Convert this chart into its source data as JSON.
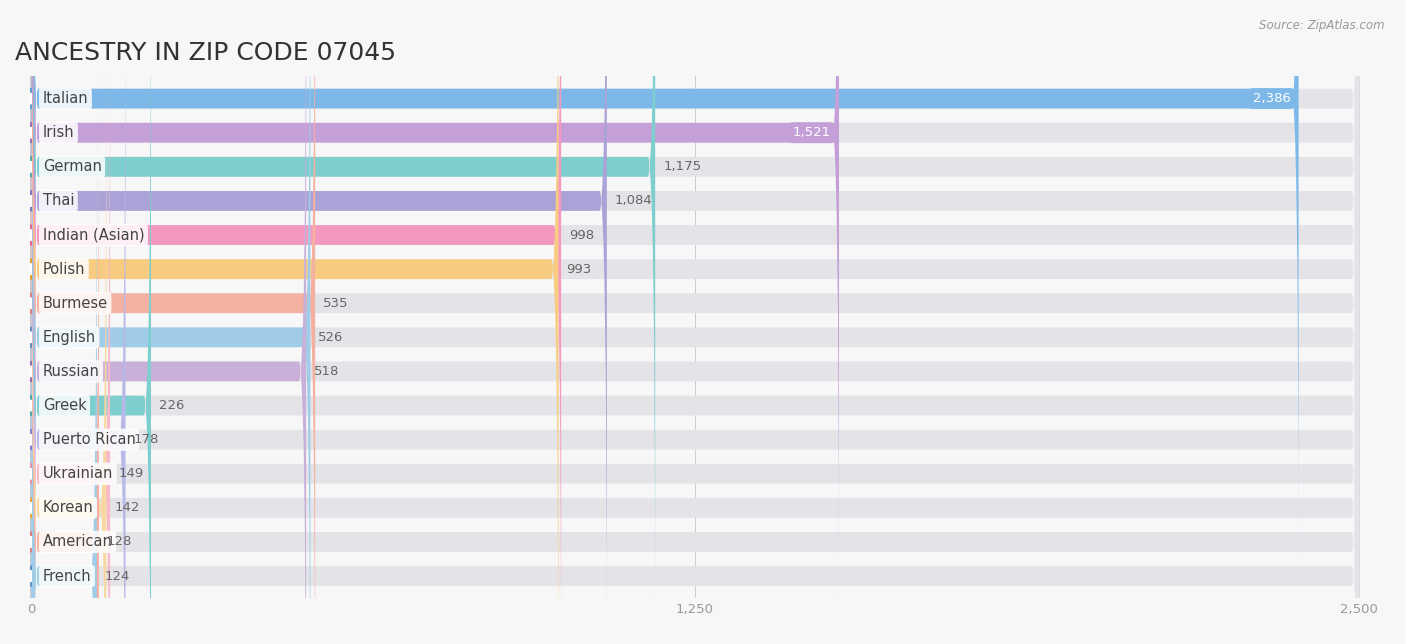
{
  "title": "ANCESTRY IN ZIP CODE 07045",
  "source": "Source: ZipAtlas.com",
  "categories": [
    "Italian",
    "Irish",
    "German",
    "Thai",
    "Indian (Asian)",
    "Polish",
    "Burmese",
    "English",
    "Russian",
    "Greek",
    "Puerto Rican",
    "Ukrainian",
    "Korean",
    "American",
    "French"
  ],
  "values": [
    2386,
    1521,
    1175,
    1084,
    998,
    993,
    535,
    526,
    518,
    226,
    178,
    149,
    142,
    128,
    124
  ],
  "bar_colors": [
    "#7db8e8",
    "#c49fd8",
    "#7ecece",
    "#aba3d8",
    "#f598c0",
    "#f8cc80",
    "#f4b0a0",
    "#a0cce8",
    "#c8b0d8",
    "#7ecece",
    "#b8b8e8",
    "#f8b8cc",
    "#f8d8a0",
    "#f4b0a0",
    "#a0cce8"
  ],
  "dot_colors": [
    "#5a9fcc",
    "#a070bb",
    "#50aaaa",
    "#7878bb",
    "#e86098",
    "#e8a020",
    "#e08080",
    "#6090bb",
    "#9070aa",
    "#50aaaa",
    "#8080cc",
    "#e890aa",
    "#e8a840",
    "#e08080",
    "#6090bb"
  ],
  "value_pill_colors": [
    "#7db8e8",
    "#c49fd8",
    "#7ecece",
    "#aba3d8",
    "#f598c0",
    "#f8cc80",
    "#f4b0a0",
    "#a0cce8",
    "#c8b0d8",
    "#7ecece",
    "#b8b8e8",
    "#f8b8cc",
    "#f8d8a0",
    "#f4b0a0",
    "#a0cce8"
  ],
  "xlim": [
    0,
    2500
  ],
  "xticks": [
    0,
    1250,
    2500
  ],
  "background_color": "#f7f7f7",
  "bar_background_color": "#e4e4e8",
  "title_fontsize": 18,
  "label_fontsize": 10.5,
  "value_fontsize": 9.5
}
